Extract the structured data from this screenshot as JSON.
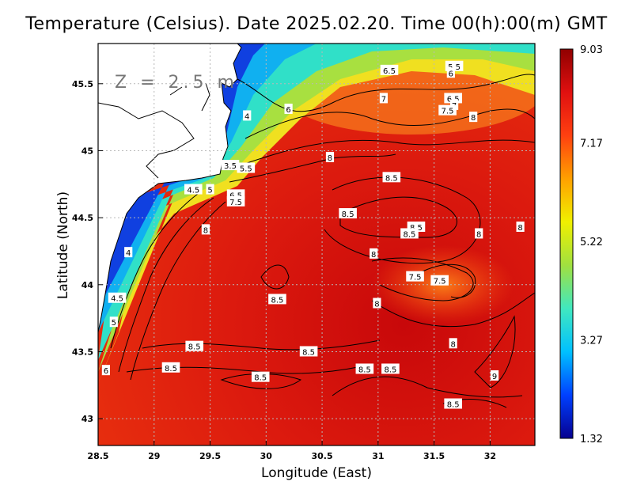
{
  "title": "Temperature (Celsius). Date 2025.02.20. Time 00(h):00(m)  GMT",
  "xlabel": "Longitude (East)",
  "ylabel": "Latitude (North)",
  "depth_label": "Z = 2.5 m",
  "colors": {
    "land": "#ffffff",
    "sea_warm": "#d8120c",
    "sea_cold": "#0a1aa8",
    "coast": "#000000",
    "grid": "#b8b8b8"
  },
  "colorbar": {
    "ticks": [
      "9.03",
      "7.17",
      "5.22",
      "3.27",
      "1.32"
    ],
    "values": [
      9.03,
      7.17,
      5.22,
      3.27,
      1.32
    ],
    "min": 1.32,
    "max": 9.03,
    "stops": [
      "#060090",
      "#0040ff",
      "#00c0ff",
      "#40e8c0",
      "#a0e040",
      "#f0f000",
      "#ffa000",
      "#ff4010",
      "#e01010",
      "#900000"
    ]
  },
  "axes": {
    "xlim": [
      28.5,
      32.4
    ],
    "ylim": [
      42.8,
      45.8
    ],
    "xticks": [
      "28.5",
      "29",
      "29.5",
      "30",
      "30.5",
      "31",
      "31.5",
      "32"
    ],
    "xtick_values": [
      28.5,
      29,
      29.5,
      30,
      30.5,
      31,
      31.5,
      32
    ],
    "yticks": [
      "45.5",
      "45",
      "44.5",
      "44",
      "43.5",
      "43"
    ],
    "ytick_values": [
      45.5,
      45,
      44.5,
      44,
      43.5,
      43
    ],
    "grid": true
  },
  "contour_labels": [
    {
      "text": "6.5",
      "lon": 31.1,
      "lat": 45.6
    },
    {
      "text": "5.5",
      "lon": 31.68,
      "lat": 45.63
    },
    {
      "text": "6",
      "lon": 31.65,
      "lat": 45.58
    },
    {
      "text": "7",
      "lon": 31.05,
      "lat": 45.39
    },
    {
      "text": "6.5",
      "lon": 31.67,
      "lat": 45.39
    },
    {
      "text": "7",
      "lon": 31.68,
      "lat": 45.34
    },
    {
      "text": "7.5",
      "lon": 31.62,
      "lat": 45.3
    },
    {
      "text": "6",
      "lon": 30.2,
      "lat": 45.31
    },
    {
      "text": "8",
      "lon": 31.85,
      "lat": 45.25
    },
    {
      "text": "4",
      "lon": 29.83,
      "lat": 45.26
    },
    {
      "text": "8",
      "lon": 30.57,
      "lat": 44.95
    },
    {
      "text": "3.5",
      "lon": 29.68,
      "lat": 44.89
    },
    {
      "text": "5.5",
      "lon": 29.82,
      "lat": 44.87
    },
    {
      "text": "8.5",
      "lon": 31.12,
      "lat": 44.8
    },
    {
      "text": "4.5",
      "lon": 29.35,
      "lat": 44.71
    },
    {
      "text": "5",
      "lon": 29.5,
      "lat": 44.71
    },
    {
      "text": "6.5",
      "lon": 29.73,
      "lat": 44.67
    },
    {
      "text": "7.5",
      "lon": 29.73,
      "lat": 44.62
    },
    {
      "text": "8.5",
      "lon": 30.73,
      "lat": 44.53
    },
    {
      "text": "8.5",
      "lon": 31.34,
      "lat": 44.43
    },
    {
      "text": "8.5",
      "lon": 31.28,
      "lat": 44.38
    },
    {
      "text": "8",
      "lon": 31.9,
      "lat": 44.38
    },
    {
      "text": "8",
      "lon": 32.27,
      "lat": 44.43
    },
    {
      "text": "8",
      "lon": 29.46,
      "lat": 44.41
    },
    {
      "text": "4",
      "lon": 28.77,
      "lat": 44.24
    },
    {
      "text": "8",
      "lon": 30.96,
      "lat": 44.23
    },
    {
      "text": "7.5",
      "lon": 31.33,
      "lat": 44.06
    },
    {
      "text": "7.5",
      "lon": 31.55,
      "lat": 44.03
    },
    {
      "text": "8.5",
      "lon": 30.1,
      "lat": 43.89
    },
    {
      "text": "8",
      "lon": 30.99,
      "lat": 43.86
    },
    {
      "text": "4.5",
      "lon": 28.67,
      "lat": 43.9
    },
    {
      "text": "5",
      "lon": 28.64,
      "lat": 43.72
    },
    {
      "text": "8",
      "lon": 31.67,
      "lat": 43.56
    },
    {
      "text": "8.5",
      "lon": 29.36,
      "lat": 43.54
    },
    {
      "text": "8.5",
      "lon": 30.38,
      "lat": 43.5
    },
    {
      "text": "6",
      "lon": 28.57,
      "lat": 43.36
    },
    {
      "text": "8.5",
      "lon": 29.15,
      "lat": 43.38
    },
    {
      "text": "8.5",
      "lon": 30.88,
      "lat": 43.37
    },
    {
      "text": "8.5",
      "lon": 31.11,
      "lat": 43.37
    },
    {
      "text": "8.5",
      "lon": 29.95,
      "lat": 43.31
    },
    {
      "text": "9",
      "lon": 32.04,
      "lat": 43.32
    },
    {
      "text": "8.5",
      "lon": 31.67,
      "lat": 43.11
    }
  ]
}
